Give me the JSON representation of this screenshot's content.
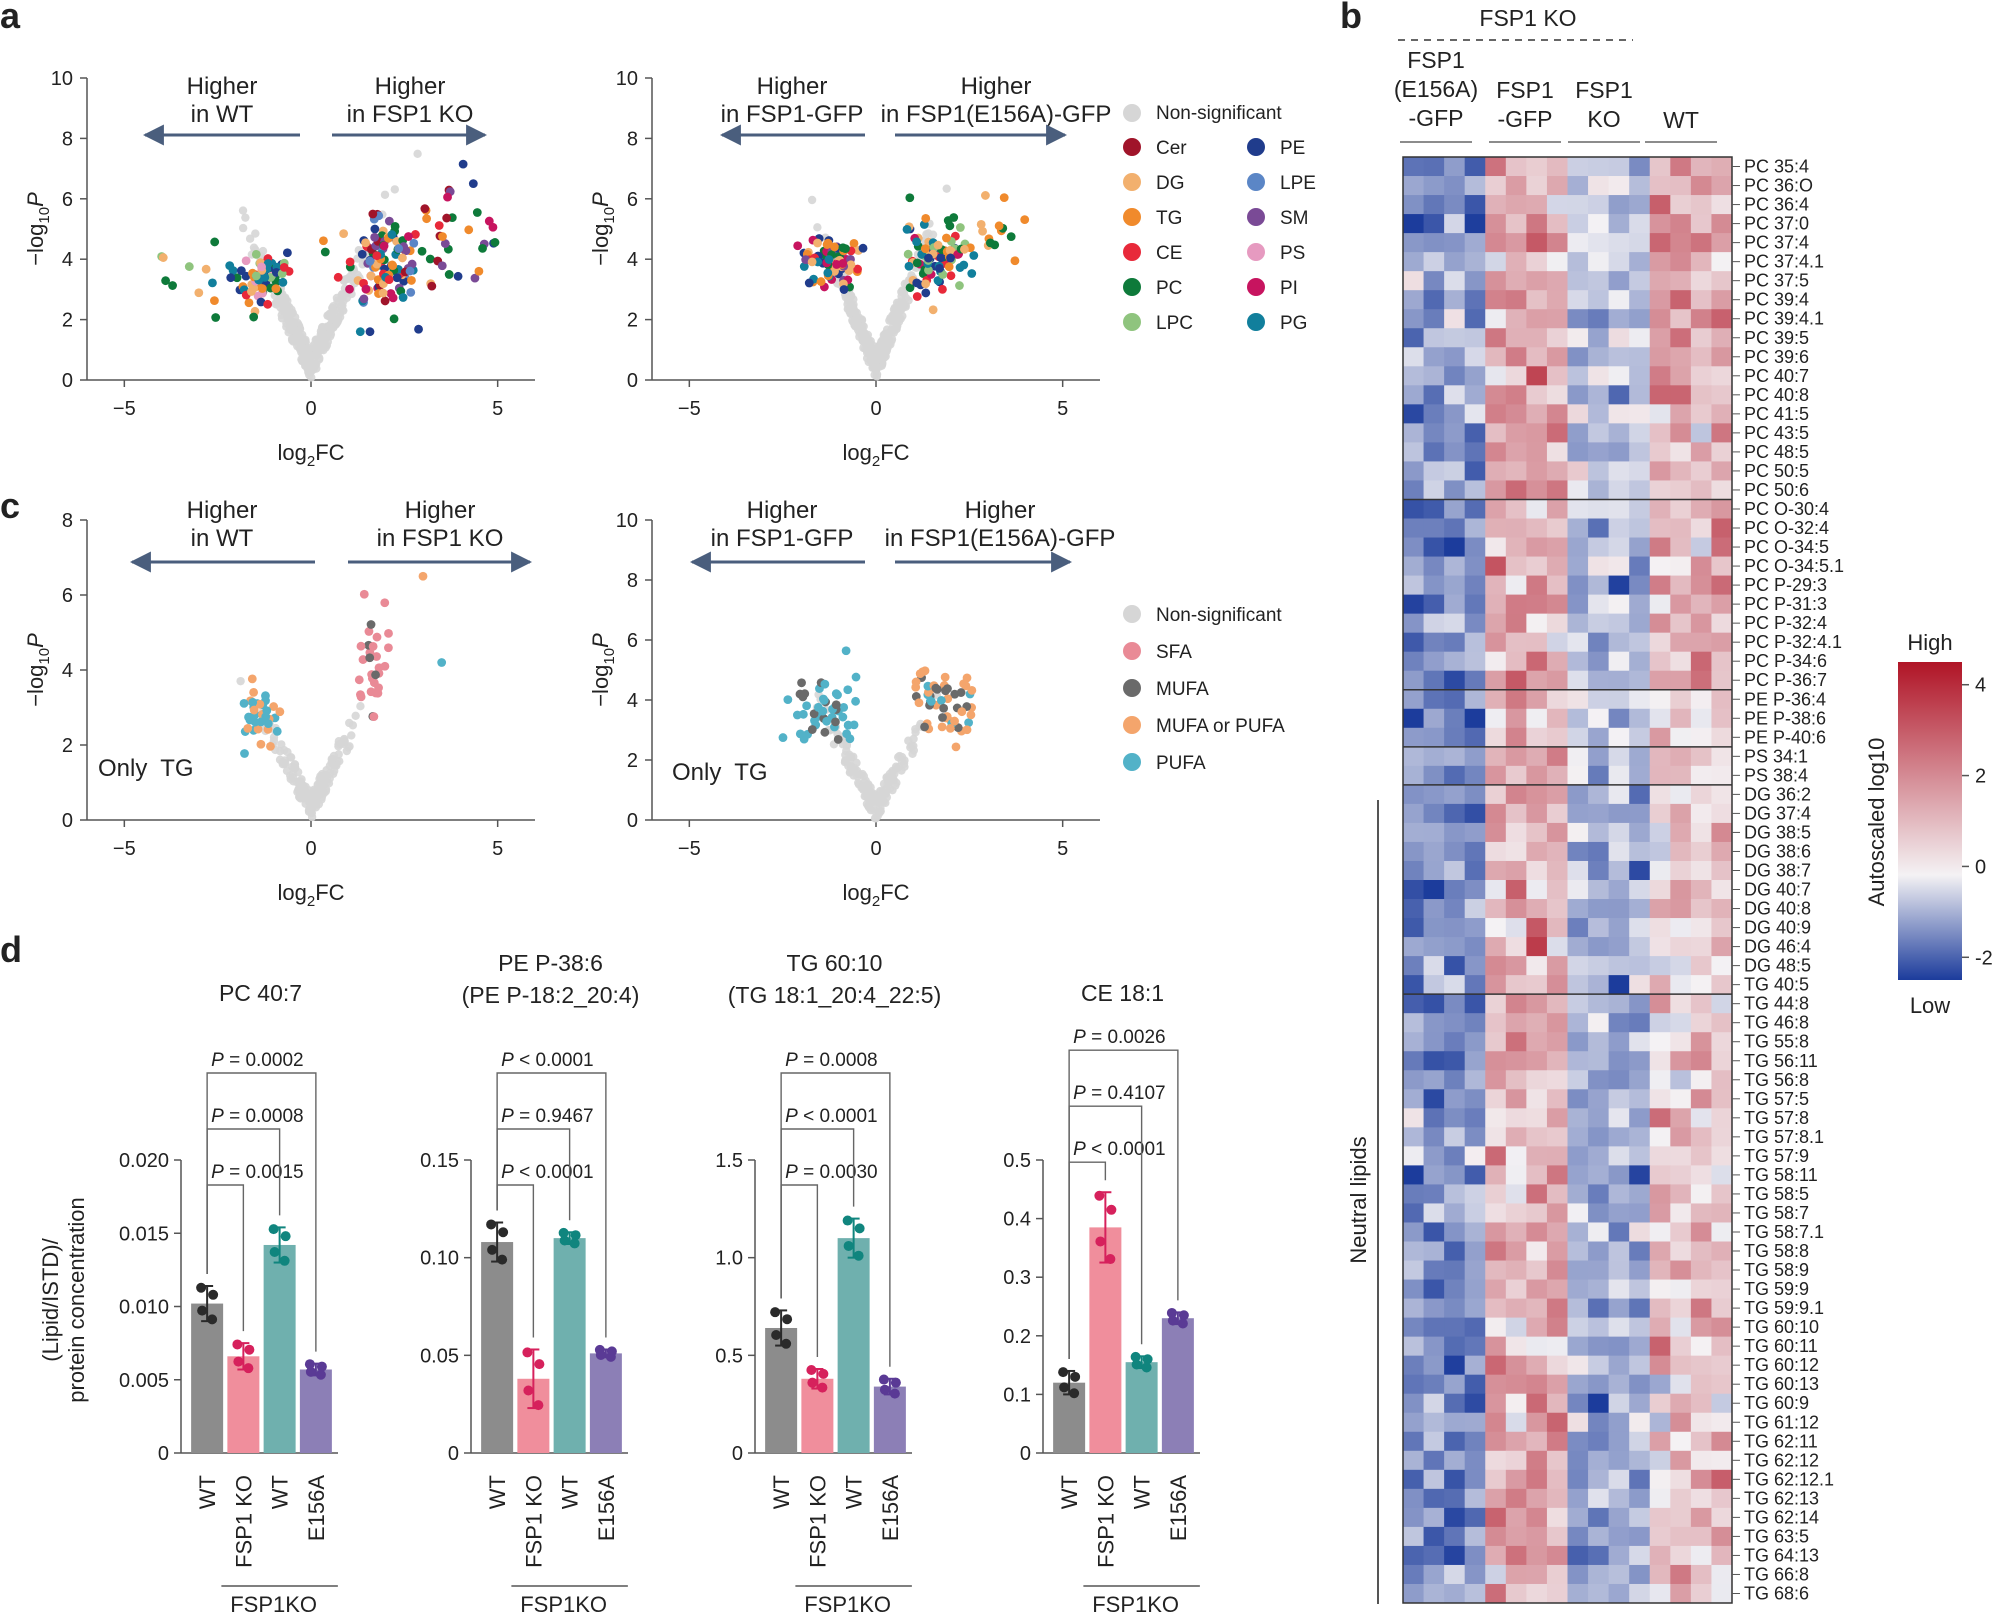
{
  "panel_letters": {
    "a": "a",
    "b": "b",
    "c": "c",
    "d": "d"
  },
  "colors": {
    "arrow": "#4a5e7d",
    "nonsig": "#d6d6d6",
    "Cer": "#a0142a",
    "DG": "#f2b06e",
    "TG": "#f08a2c",
    "CE": "#e8293a",
    "PC": "#0e7a3a",
    "LPC": "#8fc47e",
    "PE": "#203c8c",
    "LPE": "#5b86c6",
    "SM": "#7a4a96",
    "PS": "#e69ac0",
    "PI": "#c7145f",
    "PG": "#117f9c",
    "SFA": "#e98a96",
    "MUFA": "#6a6a6a",
    "MUFAorPUFA": "#f4a56c",
    "PUFA": "#52b2c8",
    "bar_wt": "#8c8c8c",
    "bar_ko": "#f08e9c",
    "bar_wt2": "#6fb0ae",
    "bar_e156a": "#8c7fb6"
  },
  "volcano_a": {
    "left": {
      "left_text": [
        "Higher",
        "in WT"
      ],
      "right_text": [
        "Higher",
        "in FSP1 KO"
      ]
    },
    "right": {
      "left_text": [
        "Higher",
        "in FSP1-GFP"
      ],
      "right_text": [
        "Higher",
        "in FSP1(E156A)-GFP"
      ]
    },
    "legend_nonsig": "Non-significant",
    "legend_classes": [
      "Cer",
      "DG",
      "TG",
      "CE",
      "PC",
      "LPC",
      "PE",
      "LPE",
      "SM",
      "PS",
      "PI",
      "PG"
    ]
  },
  "volcano_c": {
    "left": {
      "left_text": [
        "Higher",
        "in WT"
      ],
      "right_text": [
        "Higher",
        "in FSP1 KO"
      ],
      "note": "Only  TG"
    },
    "right": {
      "left_text": [
        "Higher",
        "in FSP1-GFP"
      ],
      "right_text": [
        "Higher",
        "in FSP1(E156A)-GFP"
      ],
      "note": "Only  TG"
    },
    "legend": [
      "Non-significant",
      "SFA",
      "MUFA",
      "MUFA or PUFA",
      "PUFA"
    ]
  },
  "axis_labels": {
    "xlabel_pre": "log",
    "xlabel_sub": "2",
    "xlabel_post": "FC",
    "ylabel_pre": "−log",
    "ylabel_sub": "10",
    "ylabel_post": "P"
  },
  "chart_data": [
    {
      "type": "scatter",
      "title": "",
      "xlabel": "log2FC",
      "ylabel": "−log10P",
      "xlim": [
        -6,
        6
      ],
      "ylim": [
        0,
        10
      ],
      "xticks": [
        "-5",
        "0",
        "5"
      ],
      "yticks": [
        "0",
        "2",
        "4",
        "6",
        "8",
        "10"
      ],
      "comparison": "FSP1 KO vs WT, all lipid classes"
    },
    {
      "type": "scatter",
      "title": "",
      "xlabel": "log2FC",
      "ylabel": "−log10P",
      "xlim": [
        -6,
        6
      ],
      "ylim": [
        0,
        10
      ],
      "xticks": [
        "-5",
        "0",
        "5"
      ],
      "yticks": [
        "0",
        "2",
        "4",
        "6",
        "8",
        "10"
      ],
      "comparison": "FSP1(E156A)-GFP vs FSP1-GFP, all lipid classes"
    },
    {
      "type": "scatter",
      "title": "",
      "xlabel": "log2FC",
      "ylabel": "−log10P",
      "xlim": [
        -6,
        6
      ],
      "ylim": [
        0,
        8
      ],
      "xticks": [
        "-5",
        "0",
        "5"
      ],
      "yticks": [
        "0",
        "2",
        "4",
        "6",
        "8"
      ],
      "comparison": "FSP1 KO vs WT, TG only"
    },
    {
      "type": "scatter",
      "title": "",
      "xlabel": "log2FC",
      "ylabel": "−log10P",
      "xlim": [
        -6,
        6
      ],
      "ylim": [
        0,
        10
      ],
      "xticks": [
        "-5",
        "0",
        "5"
      ],
      "yticks": [
        "0",
        "2",
        "4",
        "6",
        "8",
        "10"
      ],
      "comparison": "FSP1(E156A)-GFP vs FSP1-GFP, TG only"
    },
    {
      "type": "bar",
      "title": "PC 40:7",
      "ylabel": "(Lipid/ISTD)/ protein concentration",
      "categories": [
        "WT",
        "FSP1 KO",
        "WT",
        "E156A"
      ],
      "values": [
        0.0102,
        0.0066,
        0.0142,
        0.0057
      ],
      "errors": [
        0.0012,
        0.0009,
        0.0012,
        0.0004
      ],
      "ylim": [
        0,
        0.02
      ],
      "yticks": [
        "0",
        "0.005",
        "0.010",
        "0.015",
        "0.020"
      ],
      "group_label": "FSP1KO",
      "pvalues": [
        "P = 0.0015",
        "P = 0.0008",
        "P = 0.0002"
      ]
    },
    {
      "type": "bar",
      "title": "PE P-38:6",
      "subtitle": "(PE P-18:2_20:4)",
      "categories": [
        "WT",
        "FSP1 KO",
        "WT",
        "E156A"
      ],
      "values": [
        0.108,
        0.038,
        0.11,
        0.051
      ],
      "errors": [
        0.01,
        0.015,
        0.003,
        0.002
      ],
      "ylim": [
        0,
        0.15
      ],
      "yticks": [
        "0",
        "0.05",
        "0.10",
        "0.15"
      ],
      "group_label": "FSP1KO",
      "pvalues": [
        "P < 0.0001",
        "P = 0.9467",
        "P < 0.0001"
      ]
    },
    {
      "type": "bar",
      "title": "TG 60:10",
      "subtitle": "(TG 18:1_20:4_22:5)",
      "categories": [
        "WT",
        "FSP1 KO",
        "WT",
        "E156A"
      ],
      "values": [
        0.64,
        0.38,
        1.1,
        0.34
      ],
      "errors": [
        0.09,
        0.05,
        0.1,
        0.04
      ],
      "ylim": [
        0,
        1.5
      ],
      "yticks": [
        "0",
        "0.5",
        "1.0",
        "1.5"
      ],
      "group_label": "FSP1KO",
      "pvalues": [
        "P = 0.0030",
        "P < 0.0001",
        "P = 0.0008"
      ]
    },
    {
      "type": "bar",
      "title": "CE 18:1",
      "categories": [
        "WT",
        "FSP1 KO",
        "WT",
        "E156A"
      ],
      "values": [
        0.12,
        0.385,
        0.155,
        0.23
      ],
      "errors": [
        0.02,
        0.06,
        0.01,
        0.01
      ],
      "ylim": [
        0,
        0.5
      ],
      "yticks": [
        "0",
        "0.1",
        "0.2",
        "0.3",
        "0.4",
        "0.5"
      ],
      "group_label": "FSP1KO",
      "pvalues": [
        "P < 0.0001",
        "P = 0.4107",
        "P = 0.0026"
      ]
    },
    {
      "type": "heatmap",
      "header": "FSP1 KO",
      "columns": [
        [
          "FSP1",
          "(E156A)",
          "-GFP"
        ],
        [
          "FSP1",
          "-GFP"
        ],
        [
          "FSP1",
          "KO"
        ],
        [
          "WT"
        ]
      ],
      "rows": [
        "PC 35:4",
        "PC 36:O",
        "PC 36:4",
        "PC 37:0",
        "PC 37:4",
        "PC 37:4.1",
        "PC 37:5",
        "PC 39:4",
        "PC 39:4.1",
        "PC 39:5",
        "PC 39:6",
        "PC 40:7",
        "PC 40:8",
        "PC 41:5",
        "PC 43:5",
        "PC 48:5",
        "PC 50:5",
        "PC 50:6",
        "PC O-30:4",
        "PC O-32:4",
        "PC O-34:5",
        "PC O-34:5.1",
        "PC P-29:3",
        "PC P-31:3",
        "PC P-32:4",
        "PC P-32:4.1",
        "PC P-34:6",
        "PC P-36:7",
        "PE P-36:4",
        "PE P-38:6",
        "PE P-40:6",
        "PS 34:1",
        "PS 38:4",
        "DG 36:2",
        "DG 37:4",
        "DG 38:5",
        "DG 38:6",
        "DG 38:7",
        "DG 40:7",
        "DG 40:8",
        "DG 40:9",
        "DG 46:4",
        "DG 48:5",
        "TG 40:5",
        "TG 44:8",
        "TG 46:8",
        "TG 55:8",
        "TG 56:11",
        "TG 56:8",
        "TG 57:5",
        "TG 57:8",
        "TG 57:8.1",
        "TG 57:9",
        "TG 58:11",
        "TG 58:5",
        "TG 58:7",
        "TG 58:7.1",
        "TG 58:8",
        "TG 58:9",
        "TG 59:9",
        "TG 59:9.1",
        "TG 60:10",
        "TG 60:11",
        "TG 60:12",
        "TG 60:13",
        "TG 60:9",
        "TG 61:12",
        "TG 62:11",
        "TG 62:12",
        "TG 62:12.1",
        "TG 62:13",
        "TG 62:14",
        "TG 63:5",
        "TG 64:13",
        "TG 66:8",
        "TG 68:6"
      ],
      "side_label": "Neutral lipids",
      "colorbar": {
        "title": "High",
        "bottom": "Low",
        "label": "Autoscaled log10",
        "ticks": [
          "4",
          "2",
          "0",
          "-2"
        ],
        "range": [
          -2.5,
          4.5
        ]
      }
    }
  ]
}
